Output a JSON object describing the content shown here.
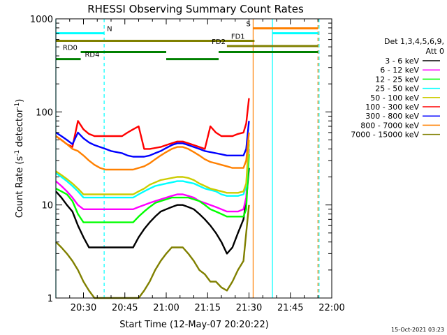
{
  "chart_data": {
    "type": "line",
    "title": "RHESSI Observing Summary Count Rates",
    "xlabel": "Start Time (12-May-07 20:20:22)",
    "ylabel_main": "Count Rate (s",
    "ylabel_sup1": "-1",
    "ylabel_mid": " detector",
    "ylabel_sup2": "-1",
    "ylabel_end": ")",
    "y_scale": "log",
    "xlim_minutes_after_2020": [
      0,
      100
    ],
    "ylim": [
      1,
      1000
    ],
    "x_ticks": [
      {
        "label": "20:30",
        "value": 10
      },
      {
        "label": "20:45",
        "value": 25
      },
      {
        "label": "21:00",
        "value": 40
      },
      {
        "label": "21:15",
        "value": 55
      },
      {
        "label": "21:30",
        "value": 70
      },
      {
        "label": "21:45",
        "value": 85
      },
      {
        "label": "22:00",
        "value": 100
      }
    ],
    "y_ticks": [
      {
        "label": "1",
        "value": 1
      },
      {
        "label": "10",
        "value": 10
      },
      {
        "label": "100",
        "value": 100
      },
      {
        "label": "1000",
        "value": 1000
      }
    ],
    "legend_header": [
      "Det 1,3,4,5,6,9,",
      "Att 0"
    ],
    "legend_position": "right",
    "series": [
      {
        "name": "3 - 6 keV",
        "color": "#000000",
        "x": [
          0,
          2,
          4,
          6,
          8,
          10,
          12,
          14,
          16,
          18,
          20,
          22,
          24,
          26,
          28,
          30,
          32,
          34,
          36,
          38,
          40,
          42,
          44,
          46,
          48,
          50,
          52,
          54,
          56,
          58,
          60,
          62,
          64,
          66,
          68,
          69,
          70
        ],
        "y": [
          14,
          12,
          10,
          8.5,
          6,
          4.5,
          3.5,
          3.5,
          3.5,
          3.5,
          3.5,
          3.5,
          3.5,
          3.5,
          3.5,
          4.5,
          5.5,
          6.5,
          7.5,
          8.5,
          9,
          9.5,
          10,
          10,
          9.5,
          9,
          8,
          7,
          6,
          5,
          4,
          3,
          3.5,
          5,
          7,
          11,
          25
        ]
      },
      {
        "name": "6 - 12 keV",
        "color": "#ff00ff",
        "x": [
          0,
          2,
          4,
          6,
          8,
          10,
          12,
          14,
          16,
          18,
          20,
          22,
          24,
          26,
          28,
          30,
          32,
          34,
          36,
          38,
          40,
          42,
          44,
          46,
          48,
          50,
          52,
          54,
          56,
          58,
          60,
          62,
          64,
          66,
          68,
          69,
          70
        ],
        "y": [
          18,
          16,
          14,
          12,
          10,
          9,
          9,
          9,
          9,
          9,
          9,
          9,
          9,
          9,
          9,
          9.5,
          10,
          10.5,
          11,
          11.5,
          12,
          12.5,
          13,
          13,
          12.5,
          12,
          11,
          10.5,
          10,
          9.5,
          9,
          8.5,
          8.5,
          8.5,
          9,
          12,
          40
        ]
      },
      {
        "name": "12 - 25 keV",
        "color": "#00ff00",
        "x": [
          0,
          2,
          4,
          6,
          8,
          10,
          12,
          14,
          16,
          18,
          20,
          22,
          24,
          26,
          28,
          30,
          32,
          34,
          36,
          38,
          40,
          42,
          44,
          46,
          48,
          50,
          52,
          54,
          56,
          58,
          60,
          62,
          64,
          66,
          68,
          69,
          70
        ],
        "y": [
          15,
          14,
          13,
          11,
          8,
          6.5,
          6.5,
          6.5,
          6.5,
          6.5,
          6.5,
          6.5,
          6.5,
          6.5,
          6.5,
          7.5,
          8.5,
          9.5,
          10.5,
          11,
          11.5,
          12,
          12,
          12,
          12,
          11.5,
          11,
          10,
          9,
          8.5,
          8,
          7.5,
          7.5,
          7.5,
          7.5,
          9,
          35
        ]
      },
      {
        "name": "25 - 50 keV",
        "color": "#00ffff",
        "x": [
          0,
          2,
          4,
          6,
          8,
          10,
          12,
          14,
          16,
          18,
          20,
          22,
          24,
          26,
          28,
          30,
          32,
          34,
          36,
          38,
          40,
          42,
          44,
          46,
          48,
          50,
          52,
          54,
          56,
          58,
          60,
          62,
          64,
          66,
          68,
          69,
          70
        ],
        "y": [
          22,
          20,
          18,
          16,
          14,
          12,
          12,
          12,
          12,
          12,
          12,
          12,
          12,
          12,
          12,
          13,
          14,
          15,
          16,
          16.5,
          17,
          17.5,
          18,
          18,
          17.5,
          17,
          16,
          15,
          14.5,
          14,
          13,
          12.5,
          12.5,
          12.5,
          13,
          16,
          45
        ]
      },
      {
        "name": "50 - 100 keV",
        "color": "#cccc00",
        "x": [
          0,
          2,
          4,
          6,
          8,
          10,
          12,
          14,
          16,
          18,
          20,
          22,
          24,
          26,
          28,
          30,
          32,
          34,
          36,
          38,
          40,
          42,
          44,
          46,
          48,
          50,
          52,
          54,
          56,
          58,
          60,
          62,
          64,
          66,
          68,
          69,
          70
        ],
        "y": [
          23,
          21,
          19,
          17,
          15,
          13,
          13,
          13,
          13,
          13,
          13,
          13,
          13,
          13,
          13,
          14,
          15,
          16.5,
          17.5,
          18.5,
          19,
          19.5,
          20,
          20,
          19.5,
          18.5,
          17,
          16,
          15,
          14.5,
          14,
          13.5,
          13.5,
          13.5,
          14,
          17,
          50
        ]
      },
      {
        "name": "100 - 300 keV",
        "color": "#ff0000",
        "x": [
          0,
          2,
          4,
          6,
          8,
          10,
          12,
          14,
          16,
          18,
          20,
          22,
          24,
          26,
          28,
          30,
          32,
          34,
          36,
          38,
          40,
          42,
          44,
          46,
          48,
          50,
          52,
          54,
          56,
          58,
          60,
          62,
          64,
          66,
          68,
          69,
          70
        ],
        "y": [
          55,
          50,
          45,
          42,
          80,
          65,
          58,
          55,
          55,
          55,
          55,
          55,
          55,
          60,
          65,
          70,
          40,
          40,
          41,
          42,
          44,
          46,
          48,
          48,
          46,
          44,
          42,
          40,
          70,
          60,
          55,
          55,
          55,
          58,
          60,
          75,
          140
        ]
      },
      {
        "name": "300 - 800 keV",
        "color": "#0000ff",
        "x": [
          0,
          2,
          4,
          6,
          8,
          10,
          12,
          14,
          16,
          18,
          20,
          22,
          24,
          26,
          28,
          30,
          32,
          34,
          36,
          38,
          40,
          42,
          44,
          46,
          48,
          50,
          52,
          54,
          56,
          58,
          60,
          62,
          64,
          66,
          68,
          69,
          70
        ],
        "y": [
          60,
          55,
          50,
          45,
          60,
          52,
          47,
          44,
          42,
          40,
          38,
          37,
          36,
          34,
          33,
          33,
          33,
          34,
          36,
          38,
          41,
          44,
          46,
          46,
          44,
          42,
          40,
          38,
          37,
          36,
          35,
          34,
          34,
          34,
          34,
          40,
          80
        ]
      },
      {
        "name": "800 - 7000 keV",
        "color": "#ff8000",
        "x": [
          0,
          2,
          4,
          6,
          8,
          10,
          12,
          14,
          16,
          18,
          20,
          22,
          24,
          26,
          28,
          30,
          32,
          34,
          36,
          38,
          40,
          42,
          44,
          46,
          48,
          50,
          52,
          54,
          56,
          58,
          60,
          62,
          64,
          66,
          68,
          69,
          70
        ],
        "y": [
          55,
          50,
          45,
          40,
          38,
          34,
          30,
          27,
          25,
          24,
          24,
          24,
          24,
          24,
          24,
          25,
          26,
          28,
          31,
          34,
          37,
          40,
          42,
          42,
          40,
          37,
          34,
          31,
          29,
          28,
          27,
          26,
          25,
          25,
          25,
          30,
          60
        ]
      },
      {
        "name": "7000 - 15000 keV",
        "color": "#808000",
        "x": [
          0,
          2,
          4,
          6,
          8,
          10,
          12,
          14,
          16,
          18,
          20,
          22,
          24,
          26,
          28,
          30,
          32,
          34,
          36,
          38,
          40,
          42,
          44,
          46,
          48,
          50,
          52,
          54,
          56,
          58,
          60,
          62,
          64,
          66,
          68,
          69,
          70
        ],
        "y": [
          4,
          3.5,
          3,
          2.5,
          2,
          1.5,
          1.2,
          1,
          1,
          1,
          1,
          1,
          1,
          1,
          1,
          1,
          1.2,
          1.5,
          2,
          2.5,
          3,
          3.5,
          3.5,
          3.5,
          3,
          2.5,
          2,
          1.8,
          1.5,
          1.5,
          1.3,
          1.2,
          1.5,
          2,
          2.5,
          5,
          10
        ]
      }
    ],
    "flag_bars": [
      {
        "label": "N",
        "color": "#00ffff",
        "y": 700,
        "start": 0,
        "end": 17.5,
        "label_at": 18.5
      },
      {
        "label": "N",
        "color": "#00ffff",
        "y": 700,
        "start": 78.5,
        "end": 95
      },
      {
        "label": "S",
        "color": "#ff8000",
        "y": 790,
        "start": 71.5,
        "end": 95,
        "label_at": 69
      },
      {
        "label": "FD1",
        "color": "#808000",
        "y": 580,
        "start": 0,
        "end": 72,
        "label_at": 63.5
      },
      {
        "label": "FD2",
        "color": "#808000",
        "y": 510,
        "start": 62,
        "end": 95,
        "label_at": 56.5
      },
      {
        "label": "RD0",
        "color": "#008000",
        "y": 440,
        "start": 9,
        "end": 40,
        "label_at": 2.5
      },
      {
        "label": "RD0",
        "color": "#008000",
        "y": 440,
        "start": 59,
        "end": 95
      },
      {
        "label": "RD4",
        "color": "#008000",
        "y": 370,
        "start": 0,
        "end": 9,
        "label_at": 10.5
      },
      {
        "label": "RD4",
        "color": "#008000",
        "y": 370,
        "start": 40,
        "end": 59
      }
    ],
    "vertical_markers": [
      {
        "x": 0,
        "color": "#00ffff",
        "style": "solid"
      },
      {
        "x": 17.5,
        "color": "#00ffff",
        "style": "dashed"
      },
      {
        "x": 71.5,
        "color": "#ff8000",
        "style": "solid"
      },
      {
        "x": 78.5,
        "color": "#00ffff",
        "style": "solid"
      },
      {
        "x": 95,
        "color": "#ff8000",
        "style": "dashed"
      },
      {
        "x": 95.4,
        "color": "#00ffff",
        "style": "dashed"
      }
    ],
    "timestamp": "15-Oct-2021 03:23"
  }
}
